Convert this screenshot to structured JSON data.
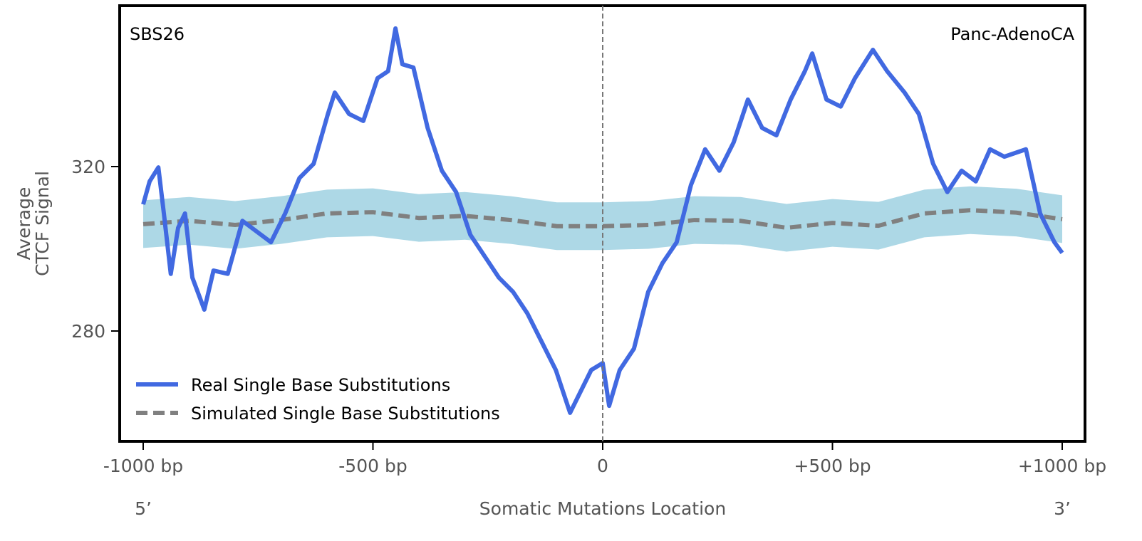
{
  "chart_data": {
    "type": "line",
    "title_left": "SBS26",
    "title_right": "Panc-AdenoCA",
    "xlabel": "Somatic Mutations Location",
    "ylabel_line1": "Average",
    "ylabel_line2": "CTCF Signal",
    "xlim": [
      -1050,
      1050
    ],
    "ylim": [
      253.2,
      359.1
    ],
    "x_ticks": [
      -1000,
      -500,
      0,
      500,
      1000
    ],
    "x_tick_labels": [
      "-1000 bp",
      "-500 bp",
      "0",
      "+500 bp",
      "+1000 bp"
    ],
    "y_ticks": [
      280,
      320
    ],
    "y_tick_labels": [
      "280",
      "320"
    ],
    "end_left": "5’",
    "end_right": "3’",
    "legend_position": "lower-left",
    "colors": {
      "real": "#4169E1",
      "simulated": "#808080",
      "band": "#ADD8E6"
    },
    "series": [
      {
        "name": "Real Single Base Substitutions",
        "x": [
          -1000,
          -986,
          -967,
          -955,
          -940,
          -924,
          -909,
          -893,
          -867,
          -847,
          -816,
          -784,
          -753,
          -722,
          -691,
          -660,
          -629,
          -598,
          -583,
          -552,
          -521,
          -490,
          -467,
          -451,
          -436,
          -412,
          -381,
          -350,
          -319,
          -288,
          -257,
          -226,
          -195,
          -164,
          -133,
          -102,
          -71,
          -56,
          -25,
          0,
          14,
          37,
          68,
          99,
          130,
          161,
          192,
          223,
          254,
          285,
          316,
          347,
          378,
          409,
          440,
          456,
          487,
          518,
          549,
          588,
          619,
          657,
          688,
          719,
          750,
          781,
          812,
          843,
          874,
          921,
          952,
          983,
          1000
        ],
        "y": [
          310.8,
          316.4,
          319.8,
          308.6,
          293.9,
          305.1,
          308.6,
          293.0,
          285.2,
          294.7,
          293.9,
          306.8,
          304.2,
          301.6,
          308.6,
          317.2,
          320.7,
          332.8,
          338.0,
          332.8,
          331.1,
          341.5,
          343.2,
          353.6,
          344.9,
          344.1,
          329.4,
          319.0,
          313.8,
          303.4,
          298.2,
          293.0,
          289.5,
          284.3,
          277.4,
          270.5,
          260.1,
          263.5,
          270.5,
          272.2,
          261.8,
          270.5,
          275.7,
          289.5,
          296.5,
          301.6,
          315.5,
          324.2,
          319.0,
          325.9,
          336.3,
          329.4,
          327.6,
          336.3,
          343.2,
          347.5,
          336.3,
          334.6,
          341.5,
          348.4,
          343.2,
          338.0,
          332.8,
          320.7,
          313.8,
          319.0,
          316.4,
          324.2,
          322.4,
          324.2,
          308.6,
          301.6,
          299.0
        ]
      },
      {
        "name": "Simulated Single Base Substitutions",
        "x": [
          -1000,
          -900,
          -800,
          -700,
          -600,
          -500,
          -400,
          -300,
          -200,
          -100,
          0,
          100,
          200,
          300,
          400,
          500,
          600,
          700,
          800,
          900,
          1000
        ],
        "y": [
          306.0,
          306.8,
          305.8,
          307.0,
          308.6,
          308.9,
          307.5,
          308.0,
          307.0,
          305.5,
          305.5,
          305.8,
          307.0,
          306.8,
          305.1,
          306.3,
          305.6,
          308.6,
          309.4,
          308.8,
          307.2
        ],
        "band_halfwidth": 5.8
      }
    ]
  }
}
